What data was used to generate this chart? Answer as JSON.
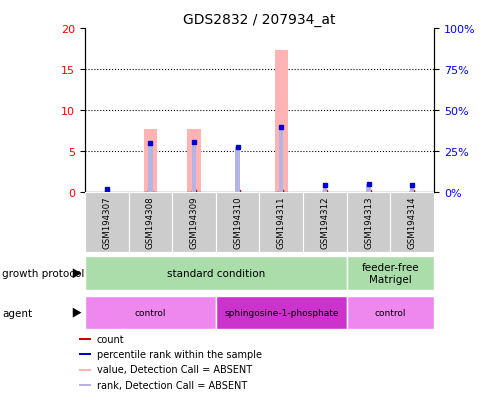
{
  "title": "GDS2832 / 207934_at",
  "samples": [
    "GSM194307",
    "GSM194308",
    "GSM194309",
    "GSM194310",
    "GSM194311",
    "GSM194312",
    "GSM194313",
    "GSM194314"
  ],
  "count_values": [
    0,
    7.6,
    7.6,
    0,
    17.3,
    0,
    0,
    0
  ],
  "rank_values_pct": [
    1.5,
    29.5,
    30.0,
    27.5,
    39.5,
    4.0,
    4.5,
    4.0
  ],
  "bar_color_absent": "#ffb3b3",
  "rank_color_absent": "#b3b3e6",
  "dot_color_blue": "#0000cc",
  "dot_color_red": "#cc0000",
  "ylim_left": [
    0,
    20
  ],
  "ylim_right": [
    0,
    100
  ],
  "yticks_left": [
    0,
    5,
    10,
    15,
    20
  ],
  "yticks_right": [
    0,
    25,
    50,
    75,
    100
  ],
  "ytick_labels_left": [
    "0",
    "5",
    "10",
    "15",
    "20"
  ],
  "ytick_labels_right": [
    "0%",
    "25%",
    "50%",
    "75%",
    "100%"
  ],
  "growth_protocol_label": "growth protocol",
  "agent_label": "agent",
  "growth_protocol_groups": [
    {
      "label": "standard condition",
      "start": 0,
      "end": 6,
      "color": "#aaddaa"
    },
    {
      "label": "feeder-free\nMatrigel",
      "start": 6,
      "end": 8,
      "color": "#aaddaa"
    }
  ],
  "agent_groups": [
    {
      "label": "control",
      "start": 0,
      "end": 3,
      "color": "#ee88ee"
    },
    {
      "label": "sphingosine-1-phosphate",
      "start": 3,
      "end": 6,
      "color": "#cc33cc"
    },
    {
      "label": "control",
      "start": 6,
      "end": 8,
      "color": "#ee88ee"
    }
  ],
  "legend_items": [
    {
      "label": "count",
      "color": "#cc0000"
    },
    {
      "label": "percentile rank within the sample",
      "color": "#0000cc"
    },
    {
      "label": "value, Detection Call = ABSENT",
      "color": "#ffb3b3"
    },
    {
      "label": "rank, Detection Call = ABSENT",
      "color": "#b3b3e6"
    }
  ],
  "background_color": "#ffffff",
  "sample_box_color": "#cccccc",
  "bar_width": 0.3,
  "rank_bar_width": 0.1
}
